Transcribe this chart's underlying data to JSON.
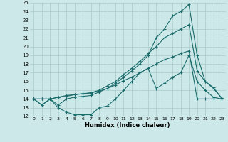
{
  "xlabel": "Humidex (Indice chaleur)",
  "bg_color": "#cce8e8",
  "grid_color": "#aacccc",
  "line_color": "#1a6b6b",
  "xlim": [
    -0.5,
    23.5
  ],
  "ylim": [
    12,
    25
  ],
  "xticks": [
    0,
    1,
    2,
    3,
    4,
    5,
    6,
    7,
    8,
    9,
    10,
    11,
    12,
    13,
    14,
    15,
    16,
    17,
    18,
    19,
    20,
    21,
    22,
    23
  ],
  "yticks": [
    12,
    13,
    14,
    15,
    16,
    17,
    18,
    19,
    20,
    21,
    22,
    23,
    24,
    25
  ],
  "line1_x": [
    0,
    1,
    2,
    3,
    4,
    5,
    6,
    7,
    8,
    9,
    10,
    11,
    12,
    13,
    14,
    15,
    16,
    17,
    18,
    19,
    20,
    21,
    22,
    23
  ],
  "line1_y": [
    14,
    13.3,
    14,
    13,
    12.5,
    12.2,
    12.2,
    12.2,
    13,
    13.2,
    14,
    15,
    16,
    17,
    17.5,
    15.2,
    15.8,
    16.5,
    17,
    19,
    16,
    15,
    14.2,
    14
  ],
  "line2_x": [
    0,
    1,
    2,
    3,
    4,
    5,
    6,
    7,
    8,
    9,
    10,
    11,
    12,
    13,
    14,
    15,
    16,
    17,
    18,
    19,
    20,
    21,
    22,
    23
  ],
  "line2_y": [
    14,
    13.3,
    14,
    13.3,
    14,
    14.2,
    14.3,
    14.4,
    14.8,
    15.2,
    15.8,
    16.5,
    17.2,
    18,
    19,
    21,
    22,
    23.5,
    24,
    24.8,
    19,
    16,
    15.3,
    14.1
  ],
  "line3_x": [
    0,
    1,
    2,
    3,
    4,
    5,
    6,
    7,
    8,
    9,
    10,
    11,
    12,
    13,
    14,
    15,
    16,
    17,
    18,
    19,
    20,
    21,
    22,
    23
  ],
  "line3_y": [
    14,
    14,
    14,
    14.2,
    14.4,
    14.5,
    14.6,
    14.7,
    15,
    15.5,
    16,
    16.8,
    17.5,
    18.3,
    19.2,
    20,
    21,
    21.5,
    22,
    22.5,
    17.2,
    16,
    15.2,
    14.1
  ],
  "line4_x": [
    0,
    1,
    2,
    3,
    4,
    5,
    6,
    7,
    8,
    9,
    10,
    11,
    12,
    13,
    14,
    15,
    16,
    17,
    18,
    19,
    20,
    21,
    22,
    23
  ],
  "line4_y": [
    14,
    14,
    14,
    14.2,
    14.3,
    14.5,
    14.6,
    14.7,
    14.9,
    15.2,
    15.6,
    16.1,
    16.5,
    17,
    17.5,
    18,
    18.5,
    18.8,
    19.2,
    19.5,
    14,
    14,
    14,
    14
  ]
}
